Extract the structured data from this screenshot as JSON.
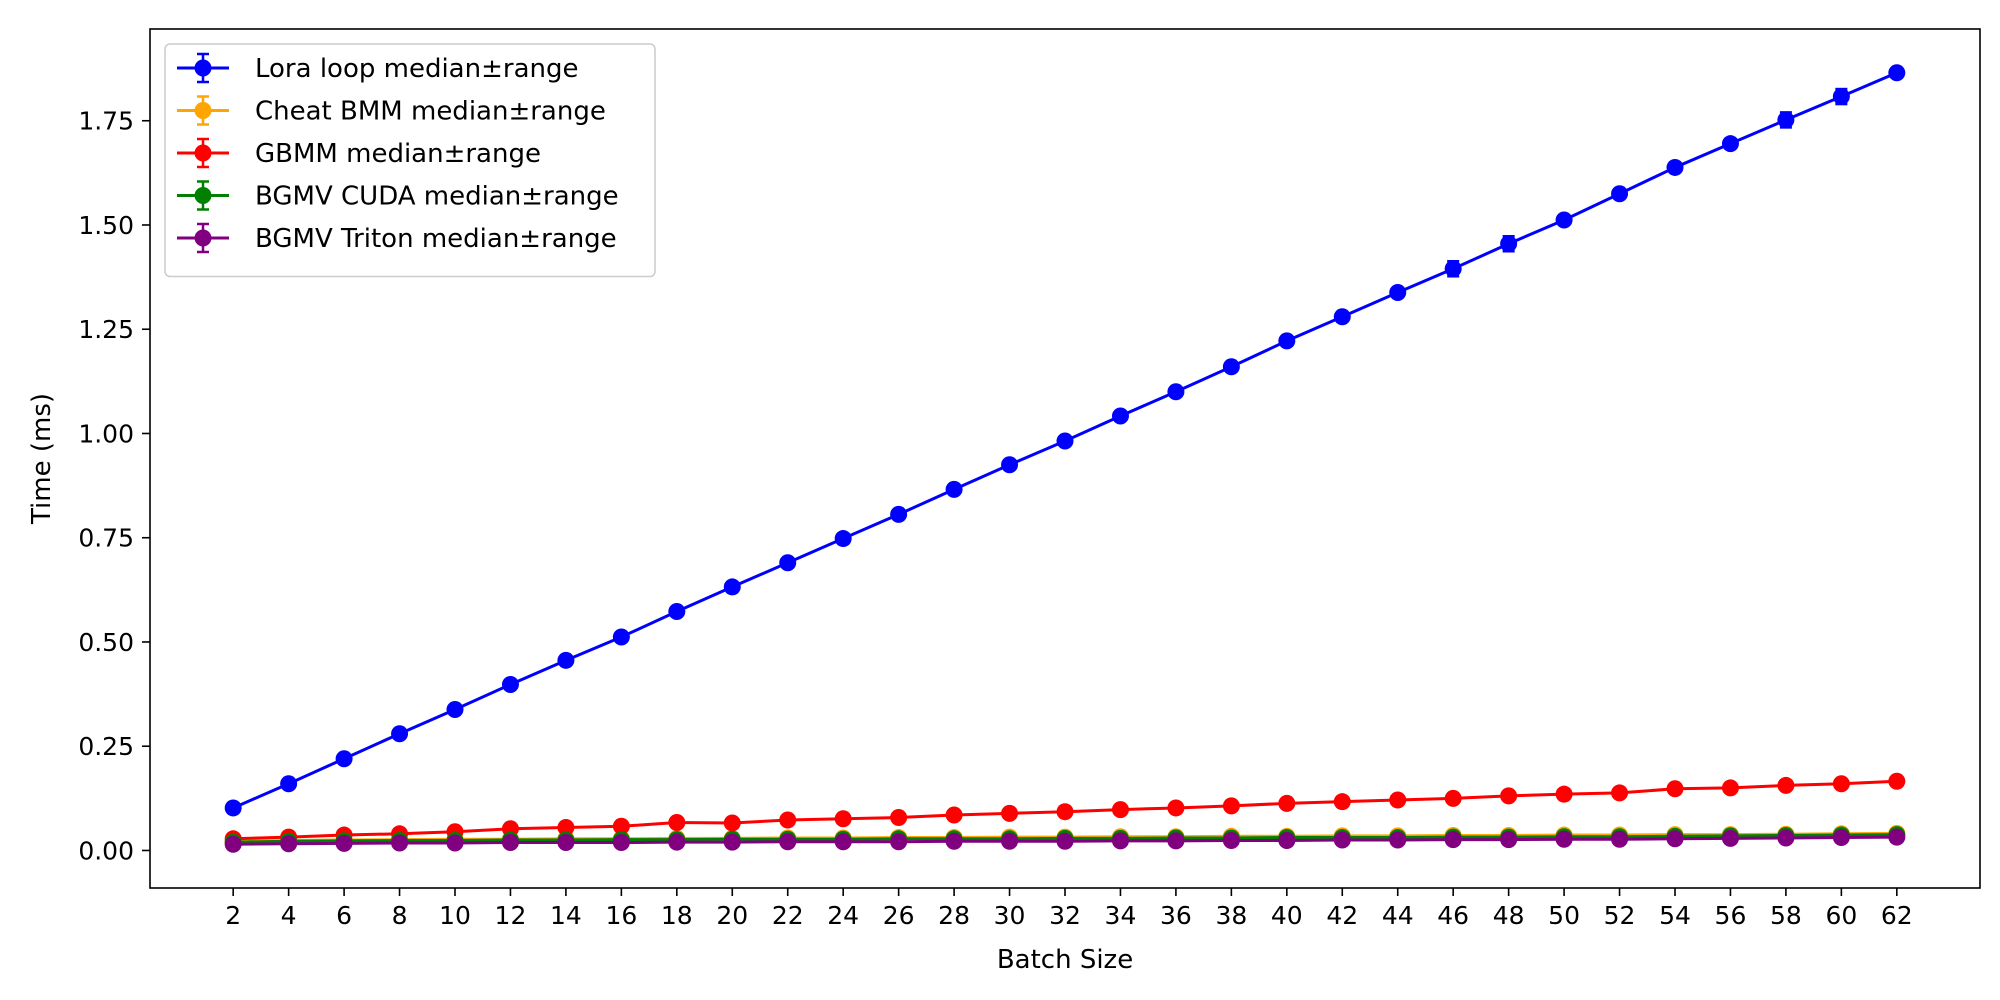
{
  "chart_data": {
    "type": "line",
    "title": "",
    "xlabel": "Batch Size",
    "ylabel": "Time (ms)",
    "x": [
      2,
      4,
      6,
      8,
      10,
      12,
      14,
      16,
      18,
      20,
      22,
      24,
      26,
      28,
      30,
      32,
      34,
      36,
      38,
      40,
      42,
      44,
      46,
      48,
      50,
      52,
      54,
      56,
      58,
      60,
      62
    ],
    "xlim": [
      -1,
      65
    ],
    "ylim": [
      -0.09,
      1.97
    ],
    "yticks": [
      0.0,
      0.25,
      0.5,
      0.75,
      1.0,
      1.25,
      1.5,
      1.75
    ],
    "ytick_labels": [
      "0.00",
      "0.25",
      "0.50",
      "0.75",
      "1.00",
      "1.25",
      "1.50",
      "1.75"
    ],
    "xtick_labels": [
      "2",
      "4",
      "6",
      "8",
      "10",
      "12",
      "14",
      "16",
      "18",
      "20",
      "22",
      "24",
      "26",
      "28",
      "30",
      "32",
      "34",
      "36",
      "38",
      "40",
      "42",
      "44",
      "46",
      "48",
      "50",
      "52",
      "54",
      "56",
      "58",
      "60",
      "62"
    ],
    "grid": false,
    "legend_position": "top-left",
    "error_bars": true,
    "series": [
      {
        "name": "Lora loop median±range",
        "color": "#0000ff",
        "values": [
          0.102,
          0.16,
          0.22,
          0.28,
          0.338,
          0.398,
          0.456,
          0.512,
          0.573,
          0.632,
          0.69,
          0.748,
          0.806,
          0.866,
          0.925,
          0.982,
          1.042,
          1.1,
          1.16,
          1.222,
          1.28,
          1.338,
          1.395,
          1.455,
          1.512,
          1.575,
          1.638,
          1.695,
          1.752,
          1.808,
          1.865
        ],
        "err_low": [
          0.004,
          0.004,
          0.004,
          0.004,
          0.004,
          0.004,
          0.004,
          0.004,
          0.004,
          0.004,
          0.004,
          0.004,
          0.004,
          0.004,
          0.004,
          0.004,
          0.004,
          0.004,
          0.004,
          0.004,
          0.004,
          0.004,
          0.018,
          0.018,
          0.006,
          0.006,
          0.006,
          0.006,
          0.018,
          0.018,
          0.006
        ],
        "err_high": [
          0.004,
          0.004,
          0.004,
          0.004,
          0.004,
          0.004,
          0.004,
          0.004,
          0.004,
          0.004,
          0.004,
          0.004,
          0.004,
          0.004,
          0.004,
          0.004,
          0.004,
          0.004,
          0.004,
          0.004,
          0.004,
          0.004,
          0.018,
          0.018,
          0.006,
          0.006,
          0.006,
          0.006,
          0.018,
          0.018,
          0.006
        ]
      },
      {
        "name": "Cheat BMM median±range",
        "color": "#ffa500",
        "values": [
          0.022,
          0.024,
          0.025,
          0.026,
          0.027,
          0.027,
          0.028,
          0.028,
          0.029,
          0.029,
          0.03,
          0.03,
          0.031,
          0.031,
          0.032,
          0.032,
          0.033,
          0.033,
          0.034,
          0.034,
          0.035,
          0.035,
          0.036,
          0.036,
          0.037,
          0.037,
          0.038,
          0.038,
          0.039,
          0.04,
          0.041
        ]
      },
      {
        "name": "GBMM median±range",
        "color": "#ff0000",
        "values": [
          0.028,
          0.032,
          0.037,
          0.04,
          0.045,
          0.052,
          0.055,
          0.058,
          0.067,
          0.066,
          0.073,
          0.076,
          0.079,
          0.085,
          0.089,
          0.093,
          0.098,
          0.102,
          0.107,
          0.113,
          0.117,
          0.121,
          0.125,
          0.131,
          0.135,
          0.138,
          0.148,
          0.15,
          0.156,
          0.16,
          0.166
        ]
      },
      {
        "name": "BGMV CUDA median±range",
        "color": "#008000",
        "values": [
          0.02,
          0.022,
          0.023,
          0.024,
          0.024,
          0.025,
          0.025,
          0.026,
          0.026,
          0.027,
          0.027,
          0.027,
          0.028,
          0.028,
          0.028,
          0.029,
          0.029,
          0.03,
          0.03,
          0.031,
          0.031,
          0.031,
          0.032,
          0.032,
          0.033,
          0.033,
          0.034,
          0.035,
          0.036,
          0.037,
          0.038
        ]
      },
      {
        "name": "BGMV Triton median±range",
        "color": "#800080",
        "values": [
          0.015,
          0.016,
          0.017,
          0.018,
          0.018,
          0.019,
          0.019,
          0.019,
          0.02,
          0.02,
          0.021,
          0.021,
          0.021,
          0.022,
          0.022,
          0.022,
          0.023,
          0.023,
          0.024,
          0.024,
          0.025,
          0.025,
          0.026,
          0.026,
          0.027,
          0.027,
          0.028,
          0.029,
          0.03,
          0.031,
          0.032
        ]
      }
    ]
  }
}
